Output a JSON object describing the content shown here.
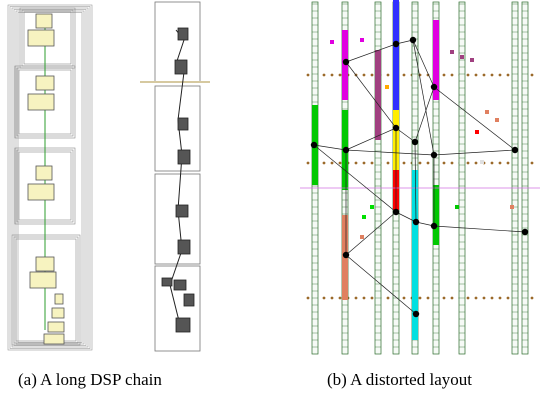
{
  "figure": {
    "captions": {
      "a": "(a) A long DSP chain",
      "b": "(b) A distorted layout"
    }
  },
  "colors": {
    "block_fill": "#f7f3c0",
    "block_stroke": "#555555",
    "chain_line": "#2e9e2e",
    "dark_block": "#555555",
    "column_stroke": "#2a6a2a",
    "io_pad": "#9b6a2a",
    "net_line": "#222222",
    "node": "#000000",
    "column_colors": [
      "#00c800",
      "#e000e0",
      "#ffee00",
      "#ff0000",
      "#00e0e0",
      "#3030ff",
      "#a04080",
      "#e08060"
    ]
  }
}
